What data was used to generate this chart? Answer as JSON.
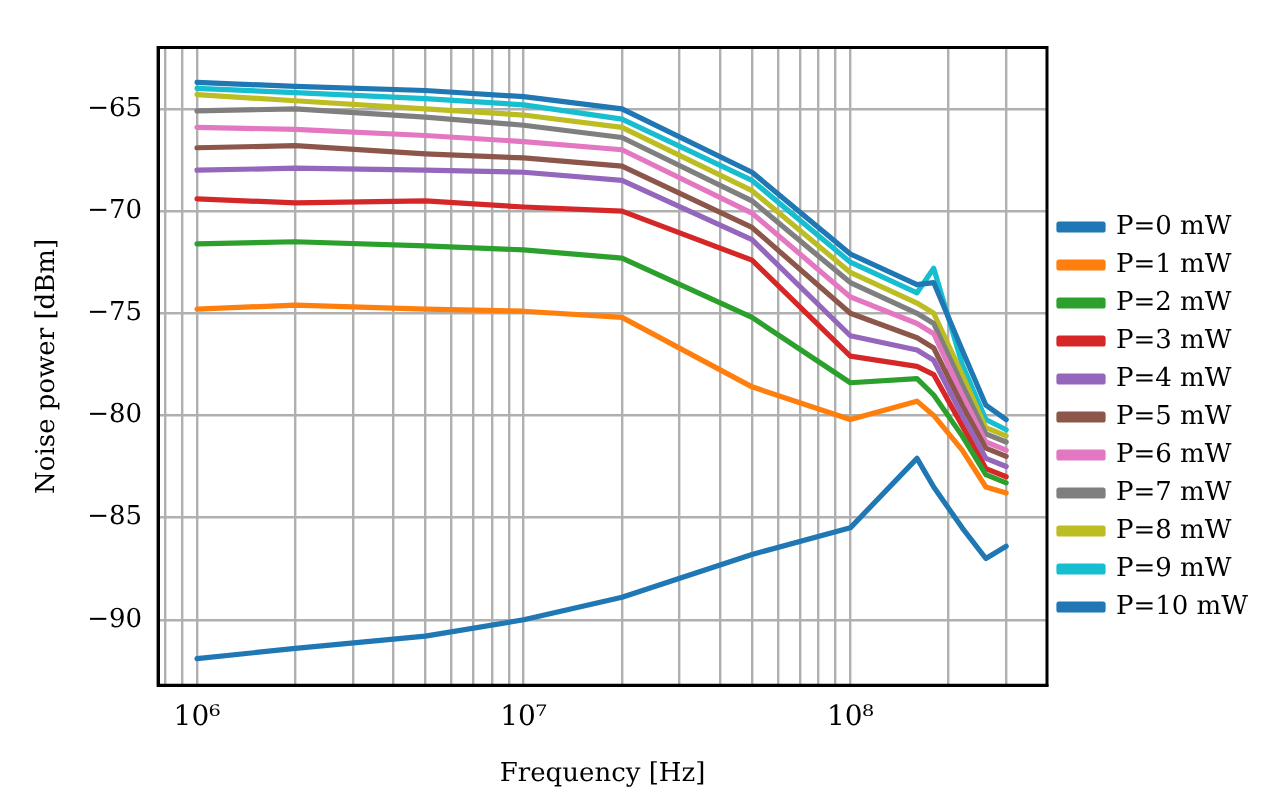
{
  "chart_data": {
    "type": "line",
    "xlabel": "Frequency [Hz]",
    "ylabel": "Noise power [dBm]",
    "log": "x",
    "grid": true,
    "legend": "right",
    "marker": "none",
    "line_style": "solid",
    "x": [
      1000000,
      2000000,
      5000000,
      10000000,
      20000000,
      50000000,
      100000000,
      160000000,
      180000000,
      220000000,
      260000000,
      300000000
    ],
    "xlim": [
      760000,
      400000000
    ],
    "xticks": [
      {
        "value": 800000,
        "label": null
      },
      {
        "value": 900000,
        "label": null
      },
      {
        "value": 1000000,
        "label": "10⁶"
      },
      {
        "value": 2000000,
        "label": null
      },
      {
        "value": 3000000,
        "label": null
      },
      {
        "value": 4000000,
        "label": null
      },
      {
        "value": 5000000,
        "label": null
      },
      {
        "value": 6000000,
        "label": null
      },
      {
        "value": 7000000,
        "label": null
      },
      {
        "value": 8000000,
        "label": null
      },
      {
        "value": 9000000,
        "label": null
      },
      {
        "value": 10000000,
        "label": "10⁷"
      },
      {
        "value": 20000000,
        "label": null
      },
      {
        "value": 30000000,
        "label": null
      },
      {
        "value": 40000000,
        "label": null
      },
      {
        "value": 50000000,
        "label": null
      },
      {
        "value": 60000000,
        "label": null
      },
      {
        "value": 70000000,
        "label": null
      },
      {
        "value": 80000000,
        "label": null
      },
      {
        "value": 90000000,
        "label": null
      },
      {
        "value": 100000000,
        "label": "10⁸"
      },
      {
        "value": 200000000,
        "label": null
      },
      {
        "value": 300000000,
        "label": null
      }
    ],
    "ylim": [
      -93.2,
      -62
    ],
    "yticks": [
      {
        "value": -90,
        "label": "−90"
      },
      {
        "value": -85,
        "label": "−85"
      },
      {
        "value": -80,
        "label": "−80"
      },
      {
        "value": -75,
        "label": "−75"
      },
      {
        "value": -70,
        "label": "−70"
      },
      {
        "value": -65,
        "label": "−65"
      }
    ],
    "series": [
      {
        "name": "P=0 mW",
        "color": "#1f77b4",
        "values": [
          -63.7,
          -63.9,
          -64.1,
          -64.4,
          -65.0,
          -68.1,
          -72.1,
          -73.6,
          -73.5,
          -76.8,
          -79.5,
          -80.2
        ]
      },
      {
        "name": "P=1 mW",
        "color": "#ff7f0e",
        "values": [
          -74.8,
          -74.6,
          -74.8,
          -74.9,
          -75.2,
          -78.6,
          -80.2,
          -79.3,
          -80.0,
          -81.7,
          -83.5,
          -83.8
        ]
      },
      {
        "name": "P=2 mW",
        "color": "#2ca02c",
        "values": [
          -71.6,
          -71.5,
          -71.7,
          -71.9,
          -72.3,
          -75.2,
          -78.4,
          -78.2,
          -79.0,
          -81.0,
          -82.9,
          -83.3
        ]
      },
      {
        "name": "P=3 mW",
        "color": "#d62728",
        "values": [
          -69.4,
          -69.6,
          -69.5,
          -69.8,
          -70.0,
          -72.4,
          -77.1,
          -77.6,
          -78.0,
          -80.5,
          -82.6,
          -83.0
        ]
      },
      {
        "name": "P=4 mW",
        "color": "#9467bd",
        "values": [
          -68.0,
          -67.9,
          -68.0,
          -68.1,
          -68.5,
          -71.4,
          -76.1,
          -76.8,
          -77.3,
          -80.0,
          -82.1,
          -82.5
        ]
      },
      {
        "name": "P=5 mW",
        "color": "#8c564b",
        "values": [
          -66.9,
          -66.8,
          -67.2,
          -67.4,
          -67.8,
          -70.8,
          -75.0,
          -76.2,
          -76.7,
          -79.5,
          -81.6,
          -82.0
        ]
      },
      {
        "name": "P=6 mW",
        "color": "#e377c2",
        "values": [
          -65.9,
          -66.0,
          -66.3,
          -66.6,
          -67.0,
          -70.1,
          -74.2,
          -75.5,
          -76.0,
          -79.0,
          -81.3,
          -81.7
        ]
      },
      {
        "name": "P=7 mW",
        "color": "#7f7f7f",
        "values": [
          -65.1,
          -65.0,
          -65.4,
          -65.8,
          -66.4,
          -69.5,
          -73.5,
          -75.0,
          -75.5,
          -78.5,
          -80.9,
          -81.3
        ]
      },
      {
        "name": "P=8 mW",
        "color": "#bcbd22",
        "values": [
          -64.3,
          -64.6,
          -65.0,
          -65.3,
          -65.9,
          -69.0,
          -73.0,
          -74.5,
          -75.0,
          -78.0,
          -80.6,
          -81.0
        ]
      },
      {
        "name": "P=9 mW",
        "color": "#17becf",
        "values": [
          -64.0,
          -64.2,
          -64.5,
          -64.8,
          -65.5,
          -68.5,
          -72.5,
          -74.0,
          -72.8,
          -77.5,
          -80.2,
          -80.7
        ]
      },
      {
        "name": "P=10 mW",
        "color": "#1f77b4",
        "values": [
          -91.9,
          -91.4,
          -90.8,
          -90.0,
          -88.9,
          -86.8,
          -85.5,
          -82.1,
          -83.5,
          -85.5,
          -87.0,
          -86.4
        ]
      }
    ]
  }
}
